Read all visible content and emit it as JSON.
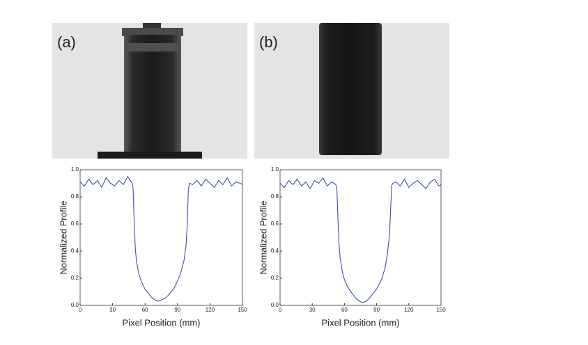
{
  "panel_labels": [
    "(a)",
    "(b)"
  ],
  "chart_data": [
    {
      "type": "line",
      "xlabel": "Pixel Position (mm)",
      "ylabel": "Normalized Profile",
      "xlim": [
        0,
        150
      ],
      "ylim": [
        0,
        1
      ],
      "xticks": [
        0,
        30,
        60,
        90,
        120,
        150
      ],
      "yticks": [
        {
          "value": 0,
          "label": "0.0"
        },
        0.2,
        0.4,
        0.6,
        0.8,
        {
          "value": 1,
          "label": "1.0"
        }
      ],
      "series": [
        {
          "color": "#3a4fb4",
          "x": [
            0,
            4,
            8,
            12,
            16,
            20,
            24,
            28,
            32,
            36,
            40,
            44,
            48,
            49,
            50,
            51,
            52,
            54,
            56,
            58,
            60,
            63,
            66,
            69,
            72,
            75,
            78,
            81,
            84,
            87,
            90,
            93,
            96,
            98,
            99,
            100,
            101,
            104,
            108,
            112,
            116,
            120,
            124,
            128,
            132,
            136,
            140,
            144,
            148,
            150
          ],
          "values": [
            0.91,
            0.88,
            0.93,
            0.89,
            0.92,
            0.87,
            0.94,
            0.9,
            0.88,
            0.92,
            0.89,
            0.95,
            0.9,
            0.86,
            0.6,
            0.42,
            0.33,
            0.24,
            0.19,
            0.15,
            0.12,
            0.09,
            0.06,
            0.04,
            0.03,
            0.04,
            0.05,
            0.07,
            0.1,
            0.13,
            0.18,
            0.24,
            0.33,
            0.45,
            0.6,
            0.85,
            0.9,
            0.89,
            0.92,
            0.88,
            0.93,
            0.9,
            0.87,
            0.92,
            0.89,
            0.94,
            0.88,
            0.91,
            0.9,
            0.89
          ]
        }
      ]
    },
    {
      "type": "line",
      "xlabel": "Pixel Position (mm)",
      "ylabel": "Normalized Profile",
      "xlim": [
        0,
        150
      ],
      "ylim": [
        0,
        1
      ],
      "xticks": [
        0,
        30,
        60,
        90,
        120,
        150
      ],
      "yticks": [
        {
          "value": 0,
          "label": "0.0"
        },
        0.2,
        0.4,
        0.6,
        0.8,
        {
          "value": 1,
          "label": "1.0"
        }
      ],
      "series": [
        {
          "color": "#3a4fb4",
          "x": [
            0,
            4,
            8,
            12,
            16,
            20,
            24,
            28,
            32,
            36,
            40,
            44,
            48,
            52,
            53,
            54,
            55,
            56,
            58,
            60,
            62,
            65,
            68,
            71,
            74,
            77,
            80,
            83,
            86,
            89,
            92,
            95,
            98,
            100,
            102,
            103,
            104,
            105,
            108,
            112,
            116,
            120,
            124,
            128,
            132,
            136,
            140,
            144,
            148,
            150
          ],
          "values": [
            0.9,
            0.87,
            0.92,
            0.89,
            0.93,
            0.88,
            0.91,
            0.86,
            0.92,
            0.9,
            0.94,
            0.88,
            0.91,
            0.89,
            0.85,
            0.62,
            0.45,
            0.35,
            0.25,
            0.19,
            0.15,
            0.11,
            0.08,
            0.05,
            0.03,
            0.02,
            0.03,
            0.05,
            0.08,
            0.11,
            0.15,
            0.2,
            0.28,
            0.38,
            0.52,
            0.7,
            0.88,
            0.9,
            0.91,
            0.88,
            0.93,
            0.87,
            0.9,
            0.92,
            0.89,
            0.86,
            0.91,
            0.93,
            0.88,
            0.89
          ]
        }
      ]
    }
  ]
}
